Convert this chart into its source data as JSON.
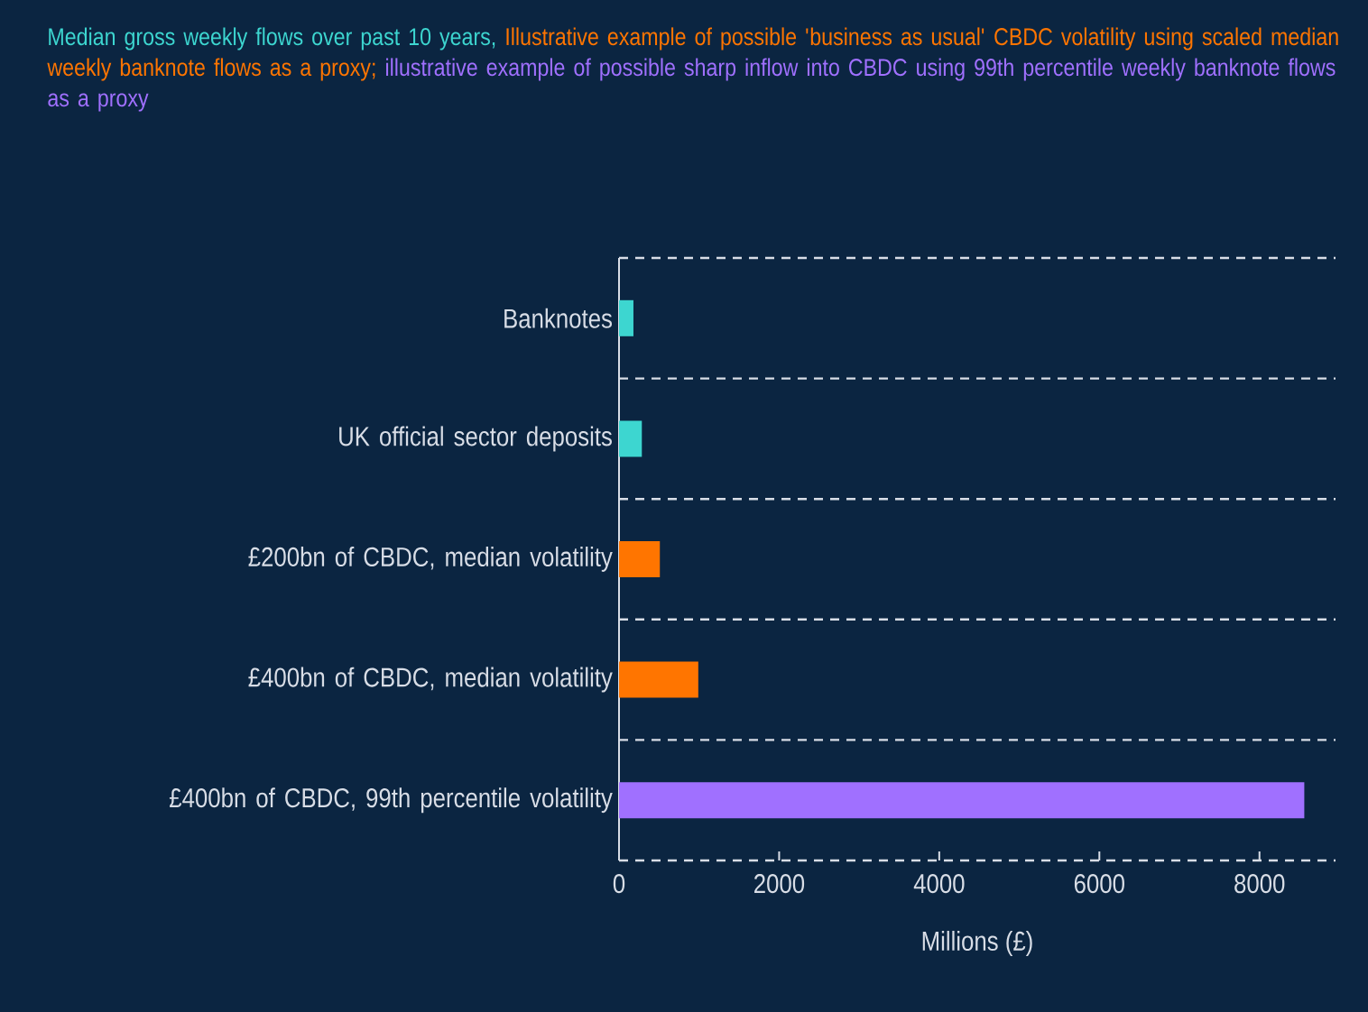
{
  "chart_data": {
    "type": "bar",
    "orientation": "horizontal",
    "categories": [
      "Banknotes",
      "UK official sector deposits",
      "£200bn of CBDC, median volatility",
      "£400bn of CBDC, median volatility",
      "£400bn of CBDC, 99th percentile volatility"
    ],
    "series": [
      {
        "name": "Median gross weekly flows over past 10 years,",
        "color": "#3dd6d0",
        "values": [
          180,
          285,
          null,
          null,
          null
        ]
      },
      {
        "name": "Illustrative example of possible 'business as usual' CBDC volatility using scaled median weekly banknote flows as a proxy;",
        "color": "#ff7500",
        "values": [
          null,
          null,
          510,
          990,
          null
        ]
      },
      {
        "name": "illustrative example of possible sharp inflow into CBDC using 99th percentile weekly banknote flows as a proxy",
        "color": "#a070ff",
        "values": [
          null,
          null,
          null,
          null,
          8560
        ]
      }
    ],
    "xlim": [
      0,
      8950
    ],
    "xticks": [
      0,
      2000,
      4000,
      6000,
      8000
    ],
    "xlabel": "Millions (£)",
    "grid": "y",
    "legend": "top"
  }
}
